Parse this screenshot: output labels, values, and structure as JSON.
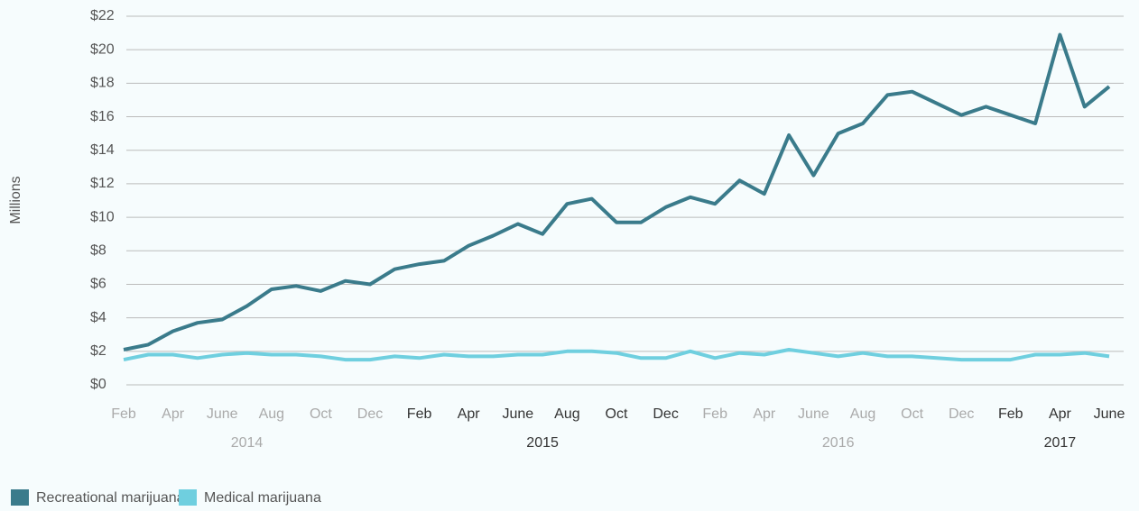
{
  "chart_data": {
    "type": "line",
    "y_label": "Millions",
    "categories": [
      "Feb",
      null,
      "Apr",
      null,
      "June",
      null,
      "Aug",
      null,
      "Oct",
      null,
      "Dec",
      null,
      "Feb",
      null,
      "Apr",
      null,
      "June",
      null,
      "Aug",
      null,
      "Oct",
      null,
      "Dec",
      null,
      "Feb",
      null,
      "Apr",
      null,
      "June",
      null,
      "Aug",
      null,
      "Oct",
      null,
      "Dec",
      null,
      "Feb",
      null,
      "Apr",
      null,
      "June"
    ],
    "x_groups": [
      {
        "label": "2014",
        "color": "#aaaaaa"
      },
      {
        "label": "2015",
        "color": "#333333"
      },
      {
        "label": "2016",
        "color": "#aaaaaa"
      },
      {
        "label": "2017",
        "color": "#333333"
      }
    ],
    "series": [
      {
        "name": "Recreational marijuana",
        "color": "#3a7b8b",
        "values": [
          2.1,
          2.4,
          3.2,
          3.7,
          3.9,
          4.7,
          5.7,
          5.9,
          5.6,
          6.2,
          6.0,
          6.9,
          7.2,
          7.4,
          8.3,
          8.9,
          9.6,
          9.0,
          10.8,
          11.1,
          9.7,
          9.7,
          10.6,
          11.2,
          10.8,
          12.2,
          11.4,
          14.9,
          12.5,
          15.0,
          15.6,
          17.3,
          17.5,
          16.8,
          16.1,
          16.6,
          16.1,
          15.6,
          20.9,
          16.6,
          17.8
        ]
      },
      {
        "name": "Medical marijuana",
        "color": "#6fcfdf",
        "values": [
          1.5,
          1.8,
          1.8,
          1.6,
          1.8,
          1.9,
          1.8,
          1.8,
          1.7,
          1.5,
          1.5,
          1.7,
          1.6,
          1.8,
          1.7,
          1.7,
          1.8,
          1.8,
          2.0,
          2.0,
          1.9,
          1.6,
          1.6,
          2.0,
          1.6,
          1.9,
          1.8,
          2.1,
          1.9,
          1.7,
          1.9,
          1.7,
          1.7,
          1.6,
          1.5,
          1.5,
          1.5,
          1.8,
          1.8,
          1.9,
          1.7
        ]
      }
    ],
    "ylim": [
      0,
      22
    ],
    "yticks": [
      {
        "value": 0,
        "label": "$0"
      },
      {
        "value": 2,
        "label": "$2"
      },
      {
        "value": 4,
        "label": "$4"
      },
      {
        "value": 6,
        "label": "$6"
      },
      {
        "value": 8,
        "label": "$8"
      },
      {
        "value": 10,
        "label": "$10"
      },
      {
        "value": 12,
        "label": "$12"
      },
      {
        "value": 14,
        "label": "$14"
      },
      {
        "value": 16,
        "label": "$16"
      },
      {
        "value": 18,
        "label": "$18"
      },
      {
        "value": 20,
        "label": "$20"
      },
      {
        "value": 22,
        "label": "$22"
      }
    ],
    "grid": true
  }
}
